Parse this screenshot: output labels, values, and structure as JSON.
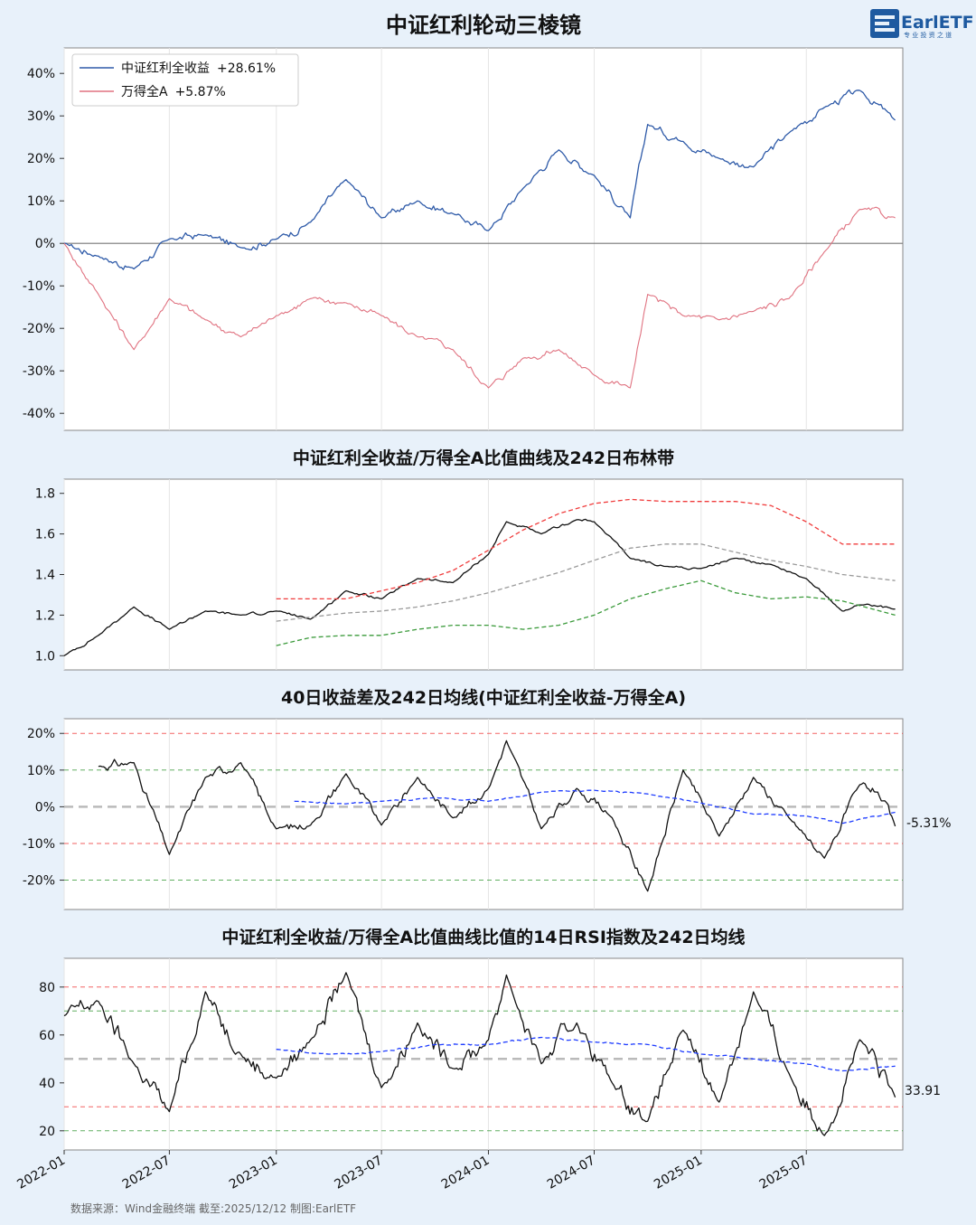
{
  "title": "中证红利轮动三棱镜",
  "logo": {
    "text": "EarlETF",
    "sub": "专 业 投 资 之 道"
  },
  "source": "数据来源：Wind金融终端 截至:2025/12/12 制图:EarlETF",
  "x_ticks": [
    "2022-01",
    "2022-07",
    "2023-01",
    "2023-07",
    "2024-01",
    "2024-07",
    "2025-01",
    "2025-07"
  ],
  "colors": {
    "bg": "#e8f1fa",
    "blue": "#2e5aa8",
    "red": "#e07280",
    "black": "#111111",
    "upper": "#f03c3c",
    "mid": "#9a9a9a",
    "lower": "#3a9a3a",
    "ma": "#1e3cff"
  },
  "chart_data": [
    {
      "type": "line",
      "title": "",
      "ylim": [
        -44,
        46
      ],
      "y_ticks": [
        "40%",
        "30%",
        "20%",
        "10%",
        "0%",
        "-10%",
        "-20%",
        "-30%",
        "-40%"
      ],
      "legend": {
        "position": "top-left",
        "entries": [
          {
            "label": "中证红利全收益",
            "value": "+28.61%"
          },
          {
            "label": "万得全A",
            "value": "+5.87%"
          }
        ]
      },
      "series": [
        {
          "name": "中证红利全收益",
          "color": "#2e5aa8",
          "x": [
            "2022-01",
            "2022-03",
            "2022-05",
            "2022-07",
            "2022-09",
            "2022-11",
            "2023-01",
            "2023-03",
            "2023-05",
            "2023-07",
            "2023-09",
            "2023-11",
            "2024-01",
            "2024-03",
            "2024-05",
            "2024-07",
            "2024-09",
            "2024-10",
            "2024-12",
            "2025-02",
            "2025-04",
            "2025-06",
            "2025-08",
            "2025-10",
            "2025-12"
          ],
          "values": [
            0,
            -3,
            -6,
            1,
            2,
            -1,
            1,
            5,
            15,
            6,
            10,
            7,
            3,
            13,
            22,
            16,
            6,
            28,
            24,
            20,
            18,
            26,
            32,
            36,
            29
          ]
        },
        {
          "name": "万得全A",
          "color": "#e07280",
          "x": [
            "2022-01",
            "2022-03",
            "2022-05",
            "2022-07",
            "2022-09",
            "2022-11",
            "2023-01",
            "2023-03",
            "2023-05",
            "2023-07",
            "2023-09",
            "2023-11",
            "2024-01",
            "2024-03",
            "2024-05",
            "2024-07",
            "2024-09",
            "2024-10",
            "2024-12",
            "2025-02",
            "2025-04",
            "2025-06",
            "2025-08",
            "2025-10",
            "2025-12"
          ],
          "values": [
            0,
            -12,
            -25,
            -13,
            -18,
            -22,
            -17,
            -13,
            -14,
            -17,
            -22,
            -25,
            -34,
            -27,
            -25,
            -31,
            -34,
            -12,
            -17,
            -18,
            -16,
            -13,
            -2,
            8,
            6
          ]
        }
      ]
    },
    {
      "type": "line",
      "title": "中证红利全收益/万得全A比值曲线及242日布林带",
      "ylim": [
        0.93,
        1.87
      ],
      "y_ticks": [
        "1.8",
        "1.6",
        "1.4",
        "1.2",
        "1.0"
      ],
      "series": [
        {
          "name": "",
          "role": "ratio",
          "x": [
            "2022-01",
            "2022-03",
            "2022-05",
            "2022-07",
            "2022-09",
            "2022-11",
            "2023-01",
            "2023-03",
            "2023-05",
            "2023-07",
            "2023-09",
            "2023-11",
            "2024-01",
            "2024-02",
            "2024-04",
            "2024-06",
            "2024-07",
            "2024-09",
            "2024-11",
            "2025-01",
            "2025-03",
            "2025-05",
            "2025-07",
            "2025-09",
            "2025-10",
            "2025-12"
          ],
          "values": [
            1.0,
            1.1,
            1.24,
            1.13,
            1.22,
            1.2,
            1.22,
            1.18,
            1.32,
            1.28,
            1.38,
            1.36,
            1.5,
            1.66,
            1.6,
            1.67,
            1.66,
            1.48,
            1.44,
            1.43,
            1.48,
            1.45,
            1.38,
            1.22,
            1.25,
            1.23
          ]
        },
        {
          "name": "",
          "role": "upper",
          "x": [
            "2023-01",
            "2023-03",
            "2023-05",
            "2023-07",
            "2023-09",
            "2023-11",
            "2024-01",
            "2024-03",
            "2024-05",
            "2024-07",
            "2024-09",
            "2024-11",
            "2025-01",
            "2025-03",
            "2025-05",
            "2025-07",
            "2025-09",
            "2025-12"
          ],
          "values": [
            1.28,
            1.28,
            1.28,
            1.32,
            1.36,
            1.42,
            1.52,
            1.62,
            1.7,
            1.75,
            1.77,
            1.76,
            1.76,
            1.76,
            1.74,
            1.66,
            1.55,
            1.55
          ]
        },
        {
          "name": "",
          "role": "mid",
          "x": [
            "2023-01",
            "2023-03",
            "2023-05",
            "2023-07",
            "2023-09",
            "2023-11",
            "2024-01",
            "2024-03",
            "2024-05",
            "2024-07",
            "2024-09",
            "2024-11",
            "2025-01",
            "2025-03",
            "2025-05",
            "2025-07",
            "2025-09",
            "2025-12"
          ],
          "values": [
            1.17,
            1.19,
            1.21,
            1.22,
            1.24,
            1.27,
            1.31,
            1.36,
            1.41,
            1.47,
            1.53,
            1.55,
            1.55,
            1.51,
            1.47,
            1.44,
            1.4,
            1.37
          ]
        },
        {
          "name": "",
          "role": "lower",
          "x": [
            "2023-01",
            "2023-03",
            "2023-05",
            "2023-07",
            "2023-09",
            "2023-11",
            "2024-01",
            "2024-03",
            "2024-05",
            "2024-07",
            "2024-09",
            "2024-11",
            "2025-01",
            "2025-03",
            "2025-05",
            "2025-07",
            "2025-09",
            "2025-12"
          ],
          "values": [
            1.05,
            1.09,
            1.1,
            1.1,
            1.13,
            1.15,
            1.15,
            1.13,
            1.15,
            1.2,
            1.28,
            1.33,
            1.37,
            1.31,
            1.28,
            1.29,
            1.27,
            1.2
          ]
        }
      ]
    },
    {
      "type": "line",
      "title": "40日收益差及242日均线(中证红利全收益-万得全A)",
      "ylim": [
        -28,
        24
      ],
      "y_ticks": [
        "20%",
        "10%",
        "0%",
        "-10%",
        "-20%"
      ],
      "reference_lines": [
        20,
        10,
        0,
        -10,
        -20
      ],
      "end_label": "-5.31%",
      "series": [
        {
          "name": "",
          "role": "spread",
          "x": [
            "2022-03",
            "2022-05",
            "2022-07",
            "2022-09",
            "2022-11",
            "2023-01",
            "2023-03",
            "2023-05",
            "2023-07",
            "2023-09",
            "2023-11",
            "2024-01",
            "2024-02",
            "2024-04",
            "2024-06",
            "2024-08",
            "2024-10",
            "2024-12",
            "2025-02",
            "2025-04",
            "2025-06",
            "2025-08",
            "2025-10",
            "2025-11",
            "2025-12"
          ],
          "values": [
            11,
            12,
            -13,
            8,
            12,
            -6,
            -5,
            9,
            -5,
            8,
            -3,
            5,
            18,
            -6,
            5,
            -3,
            -23,
            10,
            -8,
            8,
            -3,
            -14,
            6,
            4,
            -5.31
          ]
        },
        {
          "name": "",
          "role": "ma",
          "x": [
            "2023-02",
            "2023-05",
            "2023-07",
            "2023-10",
            "2024-01",
            "2024-04",
            "2024-07",
            "2024-10",
            "2025-01",
            "2025-04",
            "2025-07",
            "2025-09",
            "2025-12"
          ],
          "values": [
            1.5,
            0.8,
            1.5,
            2.5,
            1.5,
            4,
            4.5,
            3.5,
            1,
            -2,
            -2.5,
            -4.5,
            -1.5
          ]
        }
      ]
    },
    {
      "type": "line",
      "title": "中证红利全收益/万得全A比值曲线比值的14日RSI指数及242日均线",
      "ylim": [
        12,
        92
      ],
      "y_ticks": [
        "80",
        "60",
        "40",
        "20"
      ],
      "reference_lines": [
        80,
        70,
        50,
        30,
        20
      ],
      "end_label": "33.91",
      "series": [
        {
          "name": "",
          "role": "rsi",
          "x": [
            "2022-01",
            "2022-03",
            "2022-05",
            "2022-07",
            "2022-09",
            "2022-11",
            "2023-01",
            "2023-03",
            "2023-05",
            "2023-07",
            "2023-09",
            "2023-11",
            "2024-01",
            "2024-02",
            "2024-04",
            "2024-06",
            "2024-08",
            "2024-10",
            "2024-12",
            "2025-02",
            "2025-04",
            "2025-06",
            "2025-08",
            "2025-10",
            "2025-12"
          ],
          "values": [
            68,
            74,
            48,
            28,
            78,
            52,
            42,
            58,
            86,
            38,
            65,
            46,
            58,
            85,
            48,
            65,
            40,
            24,
            62,
            32,
            78,
            44,
            18,
            58,
            34
          ]
        },
        {
          "name": "",
          "role": "ma",
          "x": [
            "2023-01",
            "2023-04",
            "2023-07",
            "2023-10",
            "2024-01",
            "2024-04",
            "2024-07",
            "2024-10",
            "2025-01",
            "2025-04",
            "2025-07",
            "2025-09",
            "2025-12"
          ],
          "values": [
            54,
            52,
            53,
            56,
            56,
            59,
            57,
            56,
            52,
            50,
            48,
            45,
            47
          ]
        }
      ]
    }
  ]
}
